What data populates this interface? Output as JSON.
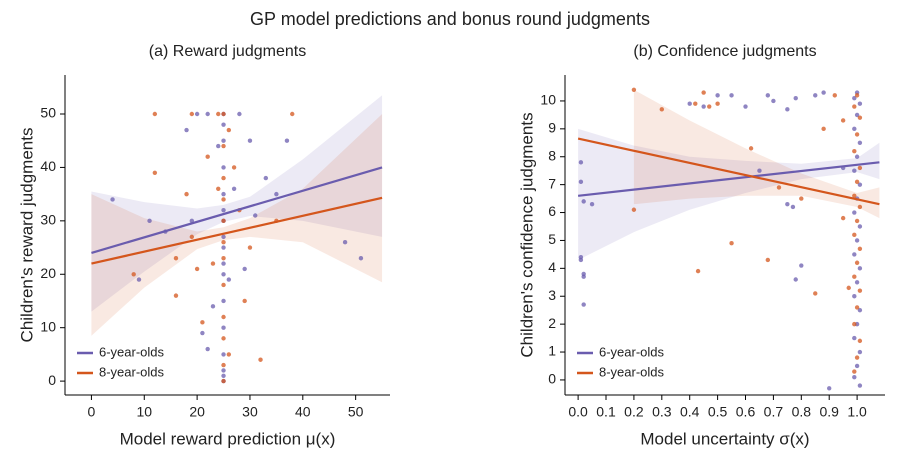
{
  "title": "GP model predictions and bonus round judgments",
  "chart_data": [
    {
      "type": "scatter",
      "title": "(a) Reward judgments",
      "x_label": "Model reward prediction μ(x)",
      "y_label": "Children's reward judgments",
      "xlim": [
        -5,
        56.5
      ],
      "ylim": [
        -2.6,
        57.3
      ],
      "xticks": [
        0,
        10,
        20,
        30,
        40,
        50
      ],
      "yticks": [
        0,
        10,
        20,
        30,
        40,
        50
      ],
      "legend": "bottom-left",
      "series": [
        {
          "name": "6-year-olds",
          "color": "#6a5cae",
          "x": [
            25,
            25,
            25,
            25,
            25,
            25,
            25,
            25,
            25,
            25,
            25,
            25,
            25,
            25,
            25,
            25,
            25,
            22,
            20,
            18,
            24,
            28,
            30,
            33,
            37,
            48,
            51,
            4,
            9,
            14,
            19,
            21,
            22,
            23,
            26,
            27,
            29,
            31,
            35,
            11
          ],
          "values": [
            50,
            0,
            48,
            45,
            40,
            35,
            32,
            30,
            27,
            25,
            22,
            20,
            15,
            10,
            5,
            2,
            1,
            50,
            50,
            47,
            44,
            50,
            45,
            38,
            45,
            26,
            23,
            34,
            19,
            28,
            30,
            9,
            6,
            14,
            19,
            36,
            21,
            31,
            35,
            30
          ],
          "fit": {
            "x": [
              0,
              55
            ],
            "values": [
              24,
              40
            ]
          },
          "band": {
            "x": [
              0,
              10,
              20,
              25,
              30,
              40,
              55
            ],
            "upper": [
              35.5,
              33.5,
              32.3,
              33,
              34.5,
              41.5,
              53.5
            ],
            "lower": [
              13,
              20.5,
              27.5,
              29.8,
              30.9,
              30,
              27
            ]
          }
        },
        {
          "name": "8-year-olds",
          "color": "#d4561c",
          "x": [
            12,
            19,
            24,
            38,
            12,
            18,
            19,
            16,
            16,
            20,
            8,
            22,
            25,
            25,
            25,
            25,
            25,
            25,
            25,
            25,
            25,
            25,
            25,
            25,
            26,
            27,
            28,
            32,
            30,
            35,
            23,
            21,
            24,
            29,
            26
          ],
          "values": [
            50,
            50,
            50,
            50,
            39,
            35,
            27,
            23,
            16,
            21,
            20,
            42,
            50,
            44,
            38,
            34,
            30,
            26,
            23,
            18,
            12,
            8,
            3,
            0,
            47,
            40,
            32,
            4,
            25,
            30,
            22,
            11,
            36,
            15,
            5
          ],
          "fit": {
            "x": [
              0,
              55
            ],
            "values": [
              22,
              34.3
            ]
          },
          "band": {
            "x": [
              0,
              10,
              20,
              25,
              30,
              40,
              55
            ],
            "upper": [
              35,
              30.5,
              28,
              28.8,
              30.5,
              36,
              50
            ],
            "lower": [
              8.5,
              17.5,
              24.7,
              26.4,
              27,
              26,
              18.5
            ]
          }
        }
      ]
    },
    {
      "type": "scatter",
      "title": "(b) Confidence judgments",
      "x_label": "Model uncertainty σ(x)",
      "y_label": "Children's confidence judgments",
      "xlim": [
        -0.047,
        1.1
      ],
      "ylim": [
        -0.54,
        10.93
      ],
      "xticks": [
        {
          "value": 0,
          "label": "0.0"
        },
        0.1,
        0.2,
        0.3,
        0.4,
        0.5,
        0.6,
        0.7,
        0.8,
        0.9,
        {
          "value": 1,
          "label": "1.0"
        }
      ],
      "yticks": [
        0,
        1,
        2,
        3,
        4,
        5,
        6,
        7,
        8,
        9,
        10
      ],
      "legend": "bottom-left",
      "series": [
        {
          "name": "6-year-olds",
          "color": "#6a5cae",
          "x": [
            0.01,
            0.01,
            0.01,
            0.01,
            0.02,
            0.02,
            0.02,
            0.02,
            0.05,
            0.4,
            0.45,
            0.5,
            0.55,
            0.6,
            0.68,
            0.7,
            0.75,
            0.78,
            0.85,
            0.88,
            0.75,
            0.77,
            0.8,
            0.78,
            0.65,
            0.9,
            0.95,
            1.0,
            0.99,
            1.01,
            1.0,
            0.99,
            1.01,
            1.0,
            0.99,
            1.01,
            1.0,
            0.99,
            1.01,
            1.0,
            0.99,
            1.01,
            1.0,
            0.99,
            1.01,
            1.0,
            0.99,
            1.01,
            1.0,
            0.99,
            1.01
          ],
          "values": [
            7.8,
            7.1,
            4.4,
            4.3,
            3.8,
            3.7,
            2.7,
            6.4,
            6.3,
            9.9,
            9.8,
            10.2,
            10.2,
            9.8,
            10.2,
            10,
            9.7,
            10.1,
            10.2,
            10.3,
            6.3,
            6.2,
            4.1,
            3.6,
            7.5,
            -0.3,
            7.6,
            10.3,
            10.1,
            9.9,
            9.5,
            9,
            8.5,
            8,
            7.5,
            7,
            6.5,
            6,
            5.5,
            5,
            4.5,
            4,
            3.5,
            3,
            2.5,
            2,
            1.5,
            1,
            0.5,
            0.1,
            -0.2
          ],
          "fit": {
            "x": [
              0,
              1.08
            ],
            "values": [
              6.6,
              7.8
            ]
          },
          "band": {
            "x": [
              0,
              0.2,
              0.4,
              0.6,
              0.8,
              1,
              1.08
            ],
            "upper": [
              9,
              8.4,
              8,
              7.85,
              7.75,
              7.95,
              8.5
            ],
            "lower": [
              4.3,
              5.3,
              6.1,
              6.7,
              7.2,
              7.45,
              7.2
            ]
          }
        },
        {
          "name": "8-year-olds",
          "color": "#d4561c",
          "x": [
            0.2,
            0.2,
            0.3,
            0.42,
            0.45,
            0.47,
            0.5,
            0.43,
            0.55,
            0.62,
            0.68,
            0.72,
            0.8,
            0.88,
            0.92,
            0.95,
            1.0,
            0.99,
            1.01,
            1.0,
            0.99,
            1.01,
            1.0,
            0.99,
            1.01,
            1.0,
            0.99,
            1.01,
            1.0,
            0.99,
            1.01,
            1.0,
            0.99,
            1.01,
            1.0,
            0.99,
            0.97,
            0.85,
            0.95
          ],
          "values": [
            10.4,
            6.1,
            9.7,
            9.9,
            10.3,
            9.8,
            9.9,
            3.9,
            4.9,
            8.3,
            4.3,
            6.9,
            6.5,
            9,
            10.2,
            9.3,
            10.2,
            9.8,
            9.4,
            8.8,
            8.2,
            7.6,
            7.1,
            6.6,
            6.2,
            5.7,
            5.2,
            4.7,
            4.2,
            3.7,
            3.2,
            2.6,
            2,
            1.4,
            0.8,
            0.3,
            3.3,
            3.1,
            5.8
          ],
          "fit": {
            "x": [
              0,
              1.08
            ],
            "values": [
              8.65,
              6.3
            ]
          },
          "band": {
            "x": [
              0.2,
              0.4,
              0.6,
              0.8,
              1,
              1.08
            ],
            "upper": [
              10.4,
              9.3,
              8.3,
              7.4,
              6.7,
              6.9
            ],
            "lower": [
              6.3,
              6.5,
              6.6,
              6.6,
              6.2,
              5.8
            ]
          }
        }
      ]
    }
  ]
}
